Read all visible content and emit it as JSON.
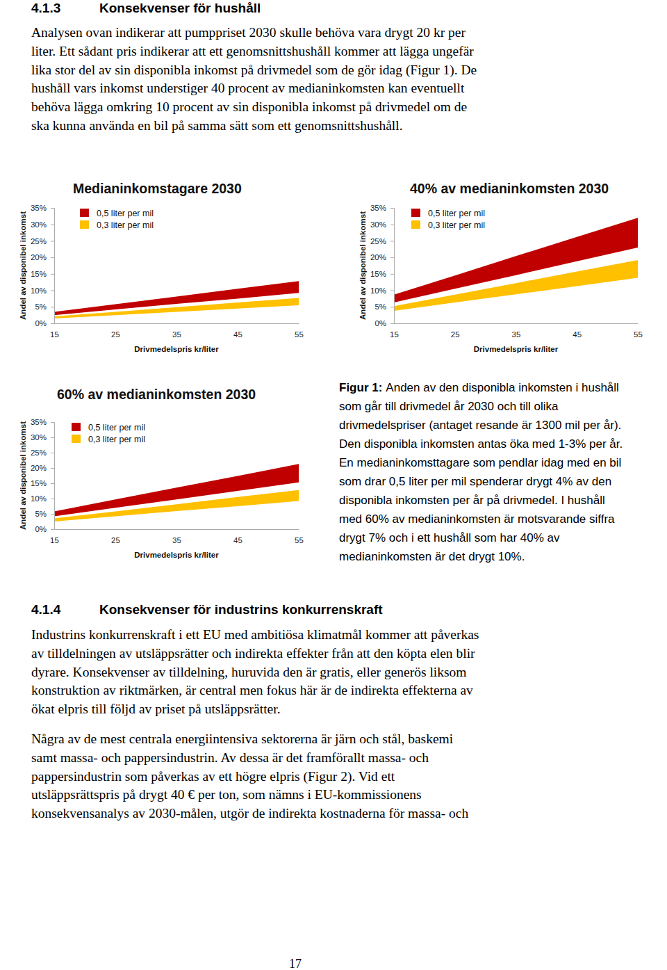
{
  "document": {
    "sections": [
      {
        "number": "4.1.3",
        "title": "Konsekvenser för hushåll",
        "paragraphs": [
          [
            "Analysen ovan indikerar att pumppriset 2030 skulle behöva vara drygt 20 kr per",
            "liter. Ett sådant pris indikerar att ett genomsnittshushåll kommer att lägga ungefär",
            "lika stor del av sin disponibla inkomst på drivmedel som de gör idag (Figur 1). De",
            "hushåll vars inkomst understiger 40 procent av medianinkomsten kan eventuellt",
            "behöva lägga omkring 10 procent av sin disponibla inkomst på drivmedel om de",
            "ska kunna använda en bil på samma sätt som ett genomsnittshushåll."
          ]
        ]
      },
      {
        "number": "4.1.4",
        "title": "Konsekvenser för industrins konkurrenskraft",
        "paragraphs": [
          [
            "Industrins konkurrenskraft i ett EU med ambitiösa klimatmål kommer att påverkas",
            "av tilldelningen av utsläppsrätter och indirekta effekter från att den köpta elen blir",
            "dyrare. Konsekvenser av tilldelning, huruvida den är gratis, eller generös liksom",
            "konstruktion av riktmärken, är central men fokus här är de indirekta effekterna av",
            "ökat elpris till följd av priset på utsläppsrätter."
          ],
          [
            "Några av de mest centrala energiintensiva sektorerna är järn och stål, baskemi",
            "samt massa- och pappersindustrin. Av dessa är det framförallt massa- och",
            "pappersindustrin som påverkas av ett högre elpris (Figur 2). Vid ett",
            "utsläppsrättspris på drygt 40 € per ton, som nämns i EU-kommissionens",
            "konsekvensanalys av 2030-målen, utgör de indirekta kostnaderna för massa- och"
          ]
        ]
      }
    ],
    "figure_caption": {
      "label": "Figur 1:",
      "lines": [
        "Anden av den disponibla inkomsten i hushåll",
        "som går till drivmedel år 2030 och till olika",
        "drivmedelspriser (antaget resande är 1300 mil per år).",
        "Den disponibla inkomsten antas öka med 1-3% per år.",
        "En medianinkomsttagare som pendlar idag med en bil",
        "som drar 0,5 liter per mil spenderar drygt 4% av den",
        "disponibla inkomsten per år på drivmedel. I hushåll",
        "med 60% av medianinkomsten är motsvarande siffra",
        "drygt 7% och i ett hushåll som har 40% av",
        "medianinkomsten är det drygt 10%."
      ]
    },
    "page_number": "17"
  },
  "chart_data": [
    {
      "type": "area",
      "title": "Medianinkomstagare 2030",
      "x_label": "Drivmedelspris kr/liter",
      "y_label": "Andel av disponibel inkomst",
      "x": [
        15,
        25,
        35,
        45,
        55
      ],
      "series": [
        {
          "name": "0,5 liter per mil",
          "color": "#c00000",
          "values": [
            3.5,
            5.8,
            8.1,
            10.5,
            12.8
          ],
          "lower": [
            2.5,
            4.2,
            5.9,
            7.5,
            9.2
          ]
        },
        {
          "name": "0,3 liter per mil",
          "color": "#ffc000",
          "values": [
            2.1,
            3.5,
            4.9,
            6.3,
            7.7
          ],
          "lower": [
            1.5,
            2.5,
            3.5,
            4.5,
            5.5
          ]
        }
      ],
      "xlim": [
        15,
        55
      ],
      "xticks": [
        15,
        25,
        35,
        45,
        55
      ],
      "ylim": [
        0,
        35
      ],
      "yticks": [
        {
          "value": 0,
          "label": "0%"
        },
        {
          "value": 5,
          "label": "5%"
        },
        {
          "value": 10,
          "label": "10%"
        },
        {
          "value": 15,
          "label": "15%"
        },
        {
          "value": 20,
          "label": "20%"
        },
        {
          "value": 25,
          "label": "25%"
        },
        {
          "value": 30,
          "label": "30%"
        },
        {
          "value": 35,
          "label": "35%"
        }
      ],
      "legend": "upper left"
    },
    {
      "type": "area",
      "title": "40% av medianinkomsten  2030",
      "x_label": "Drivmedelspris kr/liter",
      "y_label": "Andel av disponibel inkomst",
      "x": [
        15,
        25,
        35,
        45,
        55
      ],
      "series": [
        {
          "name": "0,5 liter per mil",
          "color": "#c00000",
          "values": [
            8.7,
            14.5,
            20.4,
            26.2,
            32.0
          ],
          "lower": [
            6.3,
            10.5,
            14.6,
            18.8,
            23.0
          ]
        },
        {
          "name": "0,3 liter per mil",
          "color": "#ffc000",
          "values": [
            5.2,
            8.7,
            12.2,
            15.7,
            19.2
          ],
          "lower": [
            3.8,
            6.3,
            8.8,
            11.3,
            13.8
          ]
        }
      ],
      "xlim": [
        15,
        55
      ],
      "xticks": [
        15,
        25,
        35,
        45,
        55
      ],
      "ylim": [
        0,
        35
      ],
      "yticks": [
        {
          "value": 0,
          "label": "0%"
        },
        {
          "value": 5,
          "label": "5%"
        },
        {
          "value": 10,
          "label": "10%"
        },
        {
          "value": 15,
          "label": "15%"
        },
        {
          "value": 20,
          "label": "20%"
        },
        {
          "value": 25,
          "label": "25%"
        },
        {
          "value": 30,
          "label": "30%"
        },
        {
          "value": 35,
          "label": "35%"
        }
      ],
      "legend": "upper left"
    },
    {
      "type": "area",
      "title": "60% av medianinkomsten 2030",
      "x_label": "Drivmedelspris kr/liter",
      "y_label": "Andel av disponibel inkomst",
      "x": [
        15,
        25,
        35,
        45,
        55
      ],
      "series": [
        {
          "name": "0,5 liter per mil",
          "color": "#c00000",
          "values": [
            5.8,
            9.7,
            13.6,
            17.4,
            21.3
          ],
          "lower": [
            4.2,
            7.0,
            9.7,
            12.5,
            15.3
          ]
        },
        {
          "name": "0,3 liter per mil",
          "color": "#ffc000",
          "values": [
            3.5,
            5.8,
            8.1,
            10.5,
            12.8
          ],
          "lower": [
            2.5,
            4.2,
            5.9,
            7.5,
            9.2
          ]
        }
      ],
      "xlim": [
        15,
        55
      ],
      "xticks": [
        15,
        25,
        35,
        45,
        55
      ],
      "ylim": [
        0,
        35
      ],
      "yticks": [
        {
          "value": 0,
          "label": "0%"
        },
        {
          "value": 5,
          "label": "5%"
        },
        {
          "value": 10,
          "label": "10%"
        },
        {
          "value": 15,
          "label": "15%"
        },
        {
          "value": 20,
          "label": "20%"
        },
        {
          "value": 25,
          "label": "25%"
        },
        {
          "value": 30,
          "label": "30%"
        },
        {
          "value": 35,
          "label": "35%"
        }
      ],
      "legend": "upper left"
    }
  ]
}
